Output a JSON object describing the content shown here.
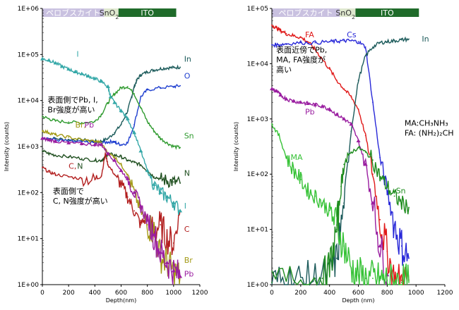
{
  "chart_data": [
    {
      "type": "line",
      "xlabel": "Depth(nm)",
      "ylabel": "Intensity (counts)",
      "xlim": [
        0,
        1200
      ],
      "ylim": [
        1,
        1000000
      ],
      "yscale": "log",
      "x_ticks": [
        "0",
        "200",
        "400",
        "600",
        "800",
        "1000",
        "1200"
      ],
      "y_ticks": [
        "1E+00",
        "1E+01",
        "1E+02",
        "1E+03",
        "1E+04",
        "1E+05",
        "1E+06"
      ],
      "layers": [
        {
          "label": "ペロブスカイト",
          "x_start": 0,
          "x_end": 470,
          "color": "#c9c1e0",
          "text_color": "#ffffff"
        },
        {
          "label": "SnO",
          "sub": "2",
          "x_start": 470,
          "x_end": 580,
          "color": "#dfe8cf",
          "text_color": "#333333"
        },
        {
          "label": "ITO",
          "x_start": 580,
          "x_end": 1020,
          "color": "#1f6b2a",
          "text_color": "#ffffff"
        }
      ],
      "annotations": [
        {
          "lines": [
            "表面側でPb, I,",
            "Br強度が高い"
          ],
          "x": 40,
          "y": 9000
        },
        {
          "lines": [
            "表面側で",
            "C, N強度が高い"
          ],
          "x": 80,
          "y": 95
        }
      ],
      "series": [
        {
          "name": "In",
          "label": "In",
          "color": "#1b5a5a",
          "label_x": 1080,
          "label_y": 70000,
          "x": [
            0,
            100,
            200,
            300,
            400,
            450,
            500,
            550,
            600,
            650,
            680,
            700,
            720,
            750,
            800,
            850,
            900,
            950,
            1000,
            1050
          ],
          "y": [
            1500,
            1500,
            1400,
            1400,
            1300,
            1300,
            1500,
            2000,
            3000,
            6000,
            12000,
            20000,
            28000,
            36000,
            42000,
            46000,
            49000,
            51000,
            52000,
            53000
          ]
        },
        {
          "name": "O",
          "label": "O",
          "color": "#1f3fcf",
          "label_x": 1080,
          "label_y": 30000,
          "x": [
            0,
            100,
            200,
            300,
            400,
            450,
            500,
            540,
            560,
            600,
            650,
            700,
            750,
            800,
            900,
            1000,
            1050
          ],
          "y": [
            1600,
            1400,
            1300,
            1250,
            1200,
            1200,
            1250,
            1300,
            1200,
            1100,
            1200,
            3000,
            12000,
            17000,
            19000,
            20000,
            21000
          ]
        },
        {
          "name": "Sn",
          "label": "Sn",
          "color": "#2e9a2e",
          "label_x": 1080,
          "label_y": 1500,
          "x": [
            0,
            50,
            100,
            200,
            300,
            400,
            450,
            500,
            550,
            600,
            650,
            700,
            750,
            800,
            850,
            900,
            950,
            1000,
            1050
          ],
          "y": [
            4500,
            4000,
            3600,
            3400,
            3300,
            3500,
            5000,
            9000,
            14000,
            19000,
            20000,
            14000,
            7000,
            3500,
            2200,
            1500,
            1200,
            1000,
            950
          ]
        },
        {
          "name": "N",
          "label": "N",
          "color": "#1f4f1f",
          "label_x": 1080,
          "label_y": 230,
          "x": [
            0,
            50,
            100,
            200,
            300,
            400,
            450,
            480,
            500,
            550,
            600,
            650,
            700,
            750,
            800,
            850,
            900,
            950,
            1000,
            1050
          ],
          "y": [
            800,
            700,
            650,
            600,
            550,
            500,
            500,
            600,
            700,
            650,
            600,
            500,
            450,
            400,
            300,
            220,
            200,
            180,
            170,
            160
          ]
        },
        {
          "name": "C",
          "label": "C",
          "color": "#b21e1e",
          "label_x": 1080,
          "label_y": 14,
          "x": [
            0,
            50,
            100,
            200,
            300,
            400,
            450,
            480,
            500,
            550,
            600,
            650,
            700,
            750,
            800,
            850,
            900,
            950,
            1000,
            1050
          ],
          "y": [
            350,
            280,
            250,
            220,
            200,
            190,
            230,
            700,
            400,
            250,
            150,
            80,
            40,
            20,
            30,
            15,
            20,
            10,
            8,
            40
          ]
        },
        {
          "name": "I",
          "label": "I",
          "color": "#35a8a8",
          "label_x": 1080,
          "label_y": 45,
          "x": [
            0,
            50,
            100,
            150,
            200,
            250,
            300,
            350,
            400,
            450,
            500,
            520,
            550,
            600,
            650,
            700,
            750,
            800,
            850,
            900,
            950,
            1000,
            1050
          ],
          "y": [
            80000,
            75000,
            65000,
            55000,
            48000,
            42000,
            38000,
            34000,
            30000,
            26000,
            20000,
            12000,
            9000,
            6000,
            4000,
            2000,
            800,
            300,
            150,
            100,
            80,
            60,
            40
          ]
        },
        {
          "name": "Br",
          "label": "Br",
          "color": "#a39a16",
          "label_x": 1080,
          "label_y": 3,
          "x": [
            0,
            50,
            100,
            200,
            300,
            400,
            450,
            500,
            550,
            600,
            650,
            700,
            750,
            800,
            850,
            900,
            950,
            1000,
            1050
          ],
          "y": [
            2200,
            2000,
            1800,
            1600,
            1400,
            1300,
            1200,
            700,
            600,
            400,
            250,
            100,
            40,
            20,
            15,
            4,
            3,
            2,
            1.5
          ]
        },
        {
          "name": "Pb",
          "label": "Pb",
          "color": "#9a1ea0",
          "label_x": 1080,
          "label_y": 1.5,
          "x": [
            0,
            50,
            100,
            200,
            300,
            400,
            450,
            500,
            550,
            600,
            650,
            700,
            750,
            800,
            850,
            900,
            950,
            1000,
            1050
          ],
          "y": [
            1500,
            1400,
            1300,
            1200,
            1150,
            1100,
            1100,
            700,
            500,
            300,
            200,
            100,
            50,
            25,
            12,
            5,
            3,
            2,
            1.5
          ]
        }
      ],
      "series_labels": [
        {
          "text": "I",
          "color": "#35a8a8",
          "x": 260,
          "y": 90000
        },
        {
          "text": "Br,",
          "color": "#a39a16",
          "x": 250,
          "y": 2600
        },
        {
          "text": "Pb",
          "color": "#9a1ea0",
          "x": 320,
          "y": 2600
        },
        {
          "text": "C,",
          "color": "#b21e1e",
          "x": 200,
          "y": 330
        },
        {
          "text": "N",
          "color": "#1f4f1f",
          "x": 265,
          "y": 330
        }
      ]
    },
    {
      "type": "line",
      "xlabel": "Depth (nm)",
      "ylabel": "Intensity (counts)",
      "xlim": [
        0,
        1200
      ],
      "ylim": [
        1,
        100000
      ],
      "yscale": "log",
      "x_ticks": [
        "0",
        "200",
        "400",
        "600",
        "800",
        "1000",
        "1200"
      ],
      "y_ticks": [
        "1E+00",
        "1E+01",
        "1E+02",
        "1E+03",
        "1E+04",
        "1E+05"
      ],
      "layers": [
        {
          "label": "ペロブスカイト",
          "x_start": 0,
          "x_end": 470,
          "color": "#c9c1e0",
          "text_color": "#ffffff"
        },
        {
          "label": "SnO",
          "sub": "2",
          "x_start": 470,
          "x_end": 580,
          "color": "#dfe8cf",
          "text_color": "#333333"
        },
        {
          "label": "ITO",
          "x_start": 580,
          "x_end": 1020,
          "color": "#1f6b2a",
          "text_color": "#ffffff"
        }
      ],
      "annotations": [
        {
          "lines": [
            "表面近傍でPb,",
            "MA, FA強度が",
            "高い"
          ],
          "x": 30,
          "y": 16000
        },
        {
          "lines": [
            "MA:CH₃NH₃",
            "FA: (NH₂)₂CH"
          ],
          "x": 920,
          "y": 750
        }
      ],
      "series": [
        {
          "name": "FA",
          "label": "FA",
          "color": "#e01919",
          "label_x": 230,
          "label_y": 30000,
          "x": [
            0,
            30,
            60,
            100,
            150,
            200,
            250,
            300,
            350,
            400,
            450,
            500,
            550,
            600,
            650,
            700,
            750,
            800,
            850,
            900,
            950
          ],
          "y": [
            50000,
            45000,
            40000,
            35000,
            32000,
            30000,
            25000,
            18000,
            12000,
            8000,
            5000,
            3500,
            2500,
            1500,
            500,
            100,
            15,
            4,
            1.2,
            1.2,
            1.2
          ]
        },
        {
          "name": "Cs",
          "label": "Cs",
          "color": "#2828d8",
          "label_x": 520,
          "label_y": 30000,
          "x": [
            0,
            50,
            100,
            200,
            300,
            400,
            450,
            500,
            550,
            600,
            650,
            700,
            750,
            800,
            850,
            900,
            950
          ],
          "y": [
            22000,
            22000,
            23000,
            24000,
            24000,
            25000,
            25500,
            26000,
            26000,
            25000,
            20000,
            2000,
            200,
            50,
            12,
            5,
            3
          ]
        },
        {
          "name": "In",
          "label": "In",
          "color": "#1b5a5a",
          "label_x": 1040,
          "label_y": 25000,
          "x": [
            0,
            100,
            200,
            300,
            400,
            450,
            500,
            550,
            600,
            650,
            700,
            750,
            800,
            850,
            900,
            950
          ],
          "y": [
            1.1,
            1.2,
            1.2,
            1.3,
            1.5,
            3,
            30,
            600,
            5000,
            14000,
            20000,
            24000,
            25000,
            26000,
            27000,
            28000
          ]
        },
        {
          "name": "Pb",
          "label": "Pb",
          "color": "#9a1ea0",
          "label_x": 230,
          "label_y": 1200,
          "x": [
            0,
            30,
            60,
            100,
            150,
            200,
            250,
            300,
            350,
            400,
            450,
            500,
            550,
            600,
            650,
            700,
            750,
            800
          ],
          "y": [
            3500,
            3200,
            2700,
            2300,
            2100,
            2000,
            1900,
            1800,
            1700,
            1500,
            1200,
            1000,
            800,
            400,
            150,
            30,
            5,
            1.5
          ]
        },
        {
          "name": "MA",
          "label": "MA",
          "color": "#36c236",
          "label_x": 130,
          "label_y": 180,
          "x": [
            0,
            50,
            100,
            150,
            200,
            250,
            300,
            350,
            400,
            450,
            500,
            550,
            600,
            650,
            700,
            750,
            800,
            850,
            900,
            950
          ],
          "y": [
            800,
            500,
            200,
            120,
            80,
            50,
            40,
            30,
            22,
            12,
            5,
            2,
            1.5,
            1.3,
            1.3,
            1.2,
            1.2,
            1.1,
            1.1,
            1.1
          ]
        },
        {
          "name": "Sn",
          "label": "Sn",
          "color": "#1e8c1e",
          "label_x": 860,
          "label_y": 45,
          "x": [
            0,
            200,
            350,
            400,
            450,
            480,
            500,
            550,
            600,
            650,
            700,
            750,
            800,
            850,
            900,
            950
          ],
          "y": [
            1.1,
            1.2,
            1.3,
            2,
            10,
            60,
            150,
            250,
            300,
            250,
            180,
            90,
            60,
            40,
            30,
            25
          ]
        }
      ],
      "series_labels": []
    }
  ]
}
